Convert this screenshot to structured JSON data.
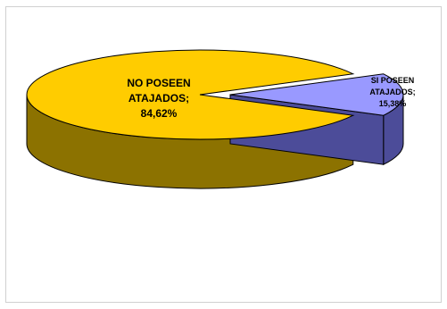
{
  "chart_data": {
    "type": "pie",
    "style": "3d-exploded",
    "categories": [
      "NO POSEEN ATAJADOS",
      "SI POSEEN ATAJADOS"
    ],
    "values": [
      84.62,
      15.38
    ],
    "colors": [
      "#FFCC00",
      "#9999FF"
    ],
    "side_colors": [
      "#8C7200",
      "#4C4C99"
    ],
    "labels": [
      {
        "lines": [
          "NO POSEEN",
          "ATAJADOS;",
          "84,62%"
        ]
      },
      {
        "lines": [
          "SI POSEEN",
          "ATAJADOS;",
          "15,38%"
        ]
      }
    ],
    "legend": "none"
  }
}
